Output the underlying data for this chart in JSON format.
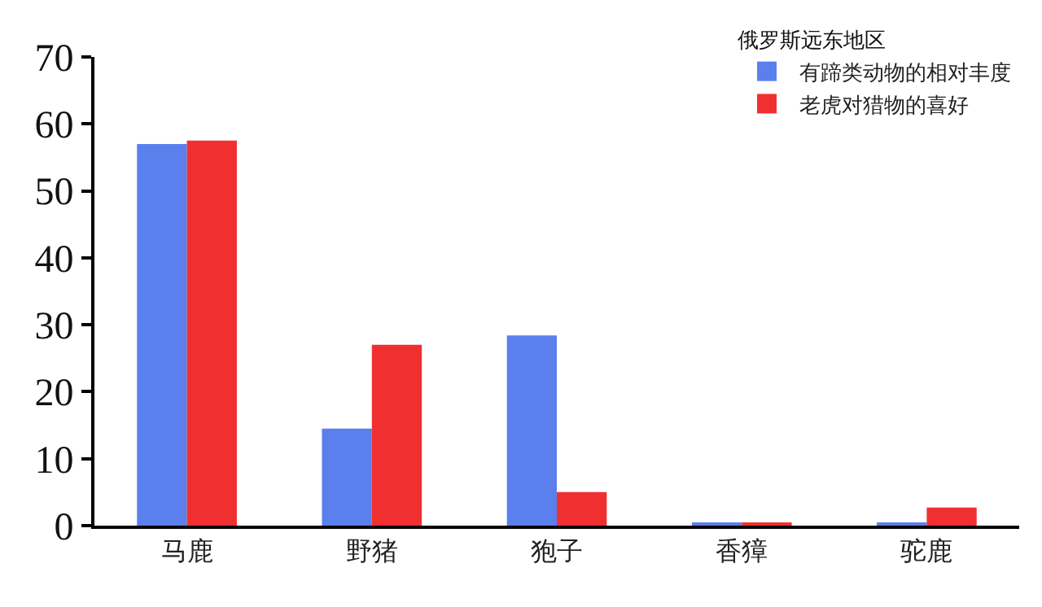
{
  "chart_data": {
    "type": "bar",
    "categories": [
      "马鹿",
      "野猪",
      "狍子",
      "香獐",
      "驼鹿"
    ],
    "series": [
      {
        "name": "有蹄类动物的相对丰度",
        "color": "#5b7fec",
        "values": [
          57,
          14.5,
          28.4,
          0.3,
          0.3
        ]
      },
      {
        "name": "老虎对猎物的喜好",
        "color": "#f03030",
        "values": [
          57.5,
          27,
          5,
          0.5,
          2.7
        ]
      }
    ],
    "legend_title": "俄罗斯远东地区",
    "legend": "top right",
    "ylim": [
      0,
      70
    ],
    "yticks": [
      0,
      10,
      20,
      30,
      40,
      50,
      60,
      70
    ],
    "grid": false
  }
}
